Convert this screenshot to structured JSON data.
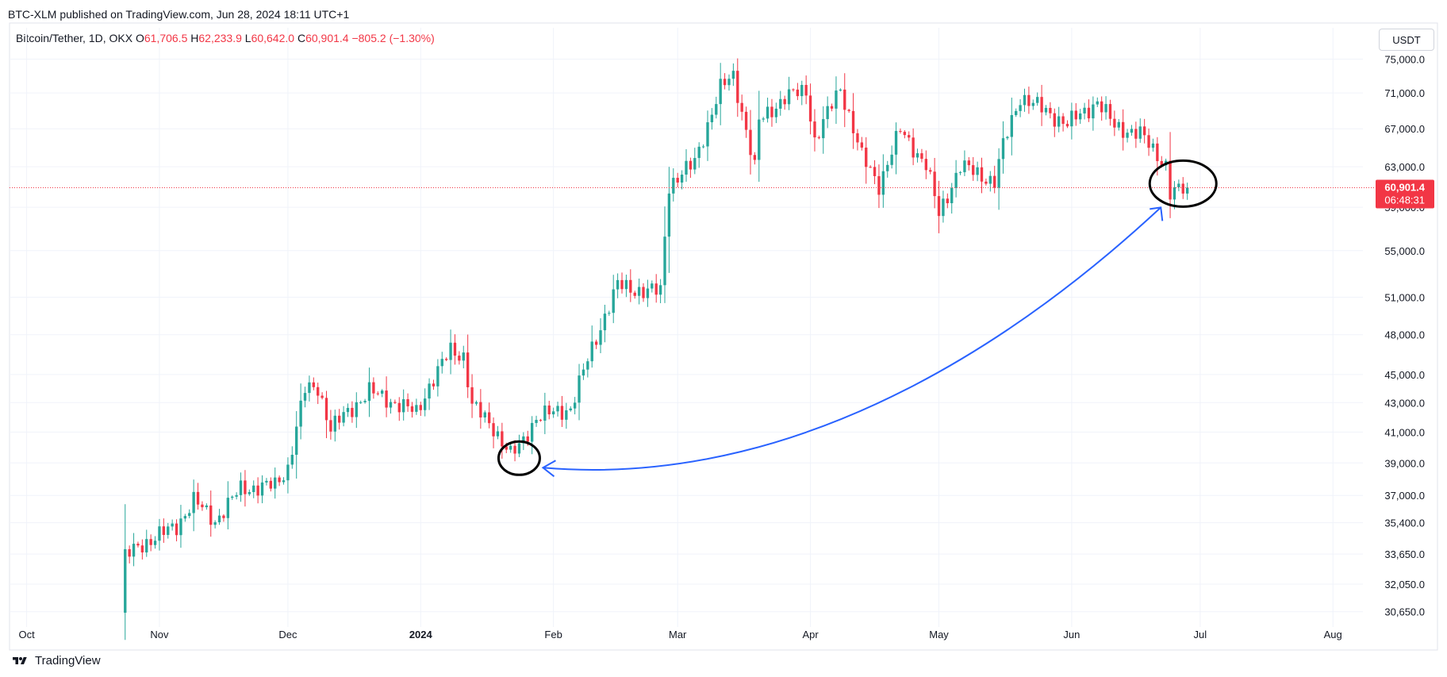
{
  "header": {
    "published": "BTC-XLM published on TradingView.com, Jun 28, 2024 18:11 UTC+1",
    "symbol": "Bitcoin/Tether, 1D, OKX",
    "open_label": "O",
    "open_value": "61,706.5",
    "high_label": "H",
    "high_value": "62,233.9",
    "low_label": "L",
    "low_value": "60,642.0",
    "close_label": "C",
    "close_value": "60,901.4",
    "change": "−805.2 (−1.30%)"
  },
  "currency_button": "USDT",
  "price_badge": {
    "price": "60,901.4",
    "countdown": "06:48:31"
  },
  "brand": "TradingView",
  "colors": {
    "up": "#26a69a",
    "down": "#f23645",
    "annotation": "#2962ff",
    "grid": "#f0f3fa"
  },
  "annotations": [
    {
      "type": "circle",
      "target": "late-January low"
    },
    {
      "type": "circle",
      "target": "late-June candles"
    },
    {
      "type": "arrow",
      "from": "late-January low",
      "to": "late-June candles"
    }
  ],
  "chart_data": {
    "type": "candlestick",
    "title": "Bitcoin/Tether, 1D, OKX",
    "y_scale": "log",
    "y_ticks": [
      75000,
      71000,
      67000,
      63000,
      59000,
      55000,
      51000,
      48000,
      45000,
      43000,
      41000,
      39000,
      37000,
      35400,
      33650,
      32050,
      30650
    ],
    "y_tick_labels": [
      "75,000.0",
      "71,000.0",
      "67,000.0",
      "63,000.0",
      "59,000.0",
      "55,000.0",
      "51,000.0",
      "48,000.0",
      "45,000.0",
      "43,000.0",
      "41,000.0",
      "39,000.0",
      "37,000.0",
      "35,400.0",
      "33,650.0",
      "32,050.0",
      "30,650.0"
    ],
    "ylim": [
      29900,
      76900
    ],
    "x_ticks": [
      {
        "date": "2023-10-01",
        "label": "Oct",
        "bold": false
      },
      {
        "date": "2023-11-01",
        "label": "Nov",
        "bold": false
      },
      {
        "date": "2023-12-01",
        "label": "Dec",
        "bold": false
      },
      {
        "date": "2024-01-01",
        "label": "2024",
        "bold": true
      },
      {
        "date": "2024-02-01",
        "label": "Feb",
        "bold": false
      },
      {
        "date": "2024-03-01",
        "label": "Mar",
        "bold": false
      },
      {
        "date": "2024-04-01",
        "label": "Apr",
        "bold": false
      },
      {
        "date": "2024-05-01",
        "label": "May",
        "bold": false
      },
      {
        "date": "2024-06-01",
        "label": "Jun",
        "bold": false
      },
      {
        "date": "2024-07-01",
        "label": "Jul",
        "bold": false
      },
      {
        "date": "2024-08-01",
        "label": "Aug",
        "bold": false
      }
    ],
    "xlim": [
      "2023-09-27",
      "2024-08-08"
    ],
    "last_price": 60901.4,
    "anchors": [
      {
        "date": "2023-10-23",
        "close": 30600
      },
      {
        "date": "2023-10-24",
        "close": 33500
      },
      {
        "date": "2023-10-28",
        "close": 34200
      },
      {
        "date": "2023-11-05",
        "close": 35200
      },
      {
        "date": "2023-11-09",
        "close": 36700
      },
      {
        "date": "2023-11-14",
        "close": 35500
      },
      {
        "date": "2023-11-20",
        "close": 37400
      },
      {
        "date": "2023-11-28",
        "close": 37600
      },
      {
        "date": "2023-12-01",
        "close": 38700
      },
      {
        "date": "2023-12-05",
        "close": 43900
      },
      {
        "date": "2023-12-08",
        "close": 44100
      },
      {
        "date": "2023-12-11",
        "close": 41200
      },
      {
        "date": "2023-12-20",
        "close": 43800
      },
      {
        "date": "2023-12-31",
        "close": 42300
      },
      {
        "date": "2024-01-03",
        "close": 44200
      },
      {
        "date": "2024-01-08",
        "close": 46800
      },
      {
        "date": "2024-01-11",
        "close": 46400
      },
      {
        "date": "2024-01-13",
        "close": 42800
      },
      {
        "date": "2024-01-18",
        "close": 41300
      },
      {
        "date": "2024-01-22",
        "close": 39500
      },
      {
        "date": "2024-01-24",
        "close": 40000
      },
      {
        "date": "2024-01-28",
        "close": 42000
      },
      {
        "date": "2024-02-05",
        "close": 42600
      },
      {
        "date": "2024-02-08",
        "close": 45200
      },
      {
        "date": "2024-02-13",
        "close": 49500
      },
      {
        "date": "2024-02-16",
        "close": 52000
      },
      {
        "date": "2024-02-22",
        "close": 51500
      },
      {
        "date": "2024-02-26",
        "close": 51500
      },
      {
        "date": "2024-02-28",
        "close": 61200
      },
      {
        "date": "2024-03-04",
        "close": 63000
      },
      {
        "date": "2024-03-05",
        "close": 63500
      },
      {
        "date": "2024-03-11",
        "close": 71500
      },
      {
        "date": "2024-03-14",
        "close": 73000
      },
      {
        "date": "2024-03-19",
        "close": 62800
      },
      {
        "date": "2024-03-20",
        "close": 67800
      },
      {
        "date": "2024-03-26",
        "close": 70500
      },
      {
        "date": "2024-03-31",
        "close": 71300
      },
      {
        "date": "2024-04-02",
        "close": 65700
      },
      {
        "date": "2024-04-08",
        "close": 71600
      },
      {
        "date": "2024-04-13",
        "close": 64000
      },
      {
        "date": "2024-04-17",
        "close": 61200
      },
      {
        "date": "2024-04-22",
        "close": 66800
      },
      {
        "date": "2024-04-28",
        "close": 63200
      },
      {
        "date": "2024-05-01",
        "close": 58300
      },
      {
        "date": "2024-05-06",
        "close": 63100
      },
      {
        "date": "2024-05-14",
        "close": 61500
      },
      {
        "date": "2024-05-16",
        "close": 65200
      },
      {
        "date": "2024-05-20",
        "close": 70600
      },
      {
        "date": "2024-05-31",
        "close": 67500
      },
      {
        "date": "2024-06-07",
        "close": 70000
      },
      {
        "date": "2024-06-11",
        "close": 67300
      },
      {
        "date": "2024-06-17",
        "close": 66400
      },
      {
        "date": "2024-06-23",
        "close": 63200
      },
      {
        "date": "2024-06-24",
        "close": 60300
      },
      {
        "date": "2024-06-28",
        "close": 60901.4
      }
    ]
  }
}
